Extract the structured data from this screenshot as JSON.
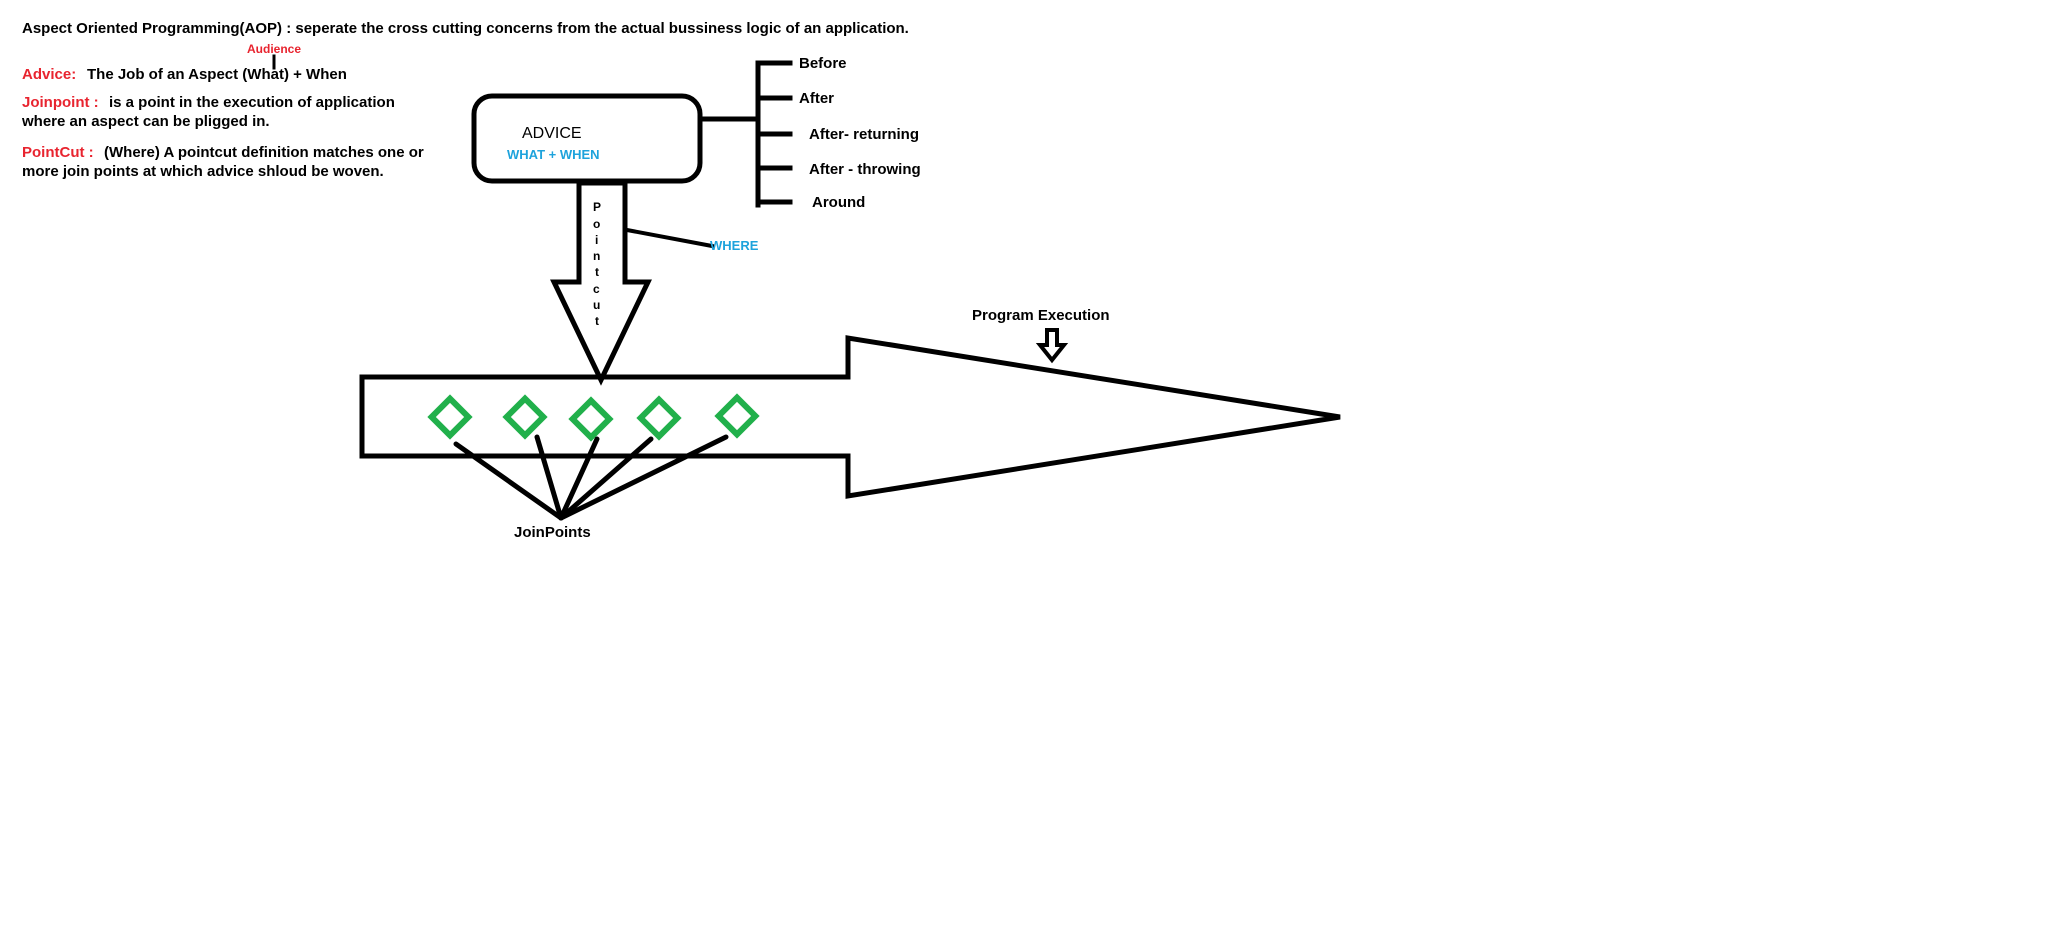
{
  "header": {
    "title": "Aspect Oriented Programming(AOP) : seperate the cross cutting concerns from the actual bussiness logic of an application."
  },
  "definitions": {
    "audience_note": "Audience",
    "advice": {
      "term": "Advice:",
      "text": "The Job of an Aspect (What) + When"
    },
    "joinpoint": {
      "term": "Joinpoint :",
      "line1": "is a point in the execution of application",
      "line2": "where an aspect can be pligged in."
    },
    "pointcut": {
      "term": "PointCut :",
      "line1": "(Where) A pointcut definition matches one or",
      "line2": "more join points at which advice shloud be woven."
    }
  },
  "diagram": {
    "advice_box": {
      "title": "ADVICE",
      "subtitle": "WHAT + WHEN"
    },
    "advice_types": [
      "Before",
      "After",
      "After- returning",
      "After - throwing",
      "Around"
    ],
    "pointcut_letters": [
      "P",
      "o",
      "i",
      "n",
      "t",
      "c",
      "u",
      "t"
    ],
    "where_label": "WHERE",
    "program_execution_label": "Program Execution",
    "joinpoints_label": "JoinPoints",
    "joinpoint_count": 5
  },
  "colors": {
    "term_red": "#e8242f",
    "accent_blue": "#1ea3dc",
    "joinpoint_green": "#21b04b",
    "ink": "#000000"
  }
}
